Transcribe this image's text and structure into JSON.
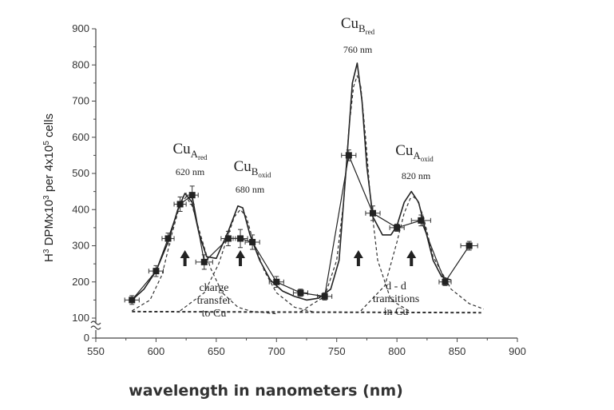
{
  "chart_data": {
    "type": "line",
    "xlabel": "wavelength in nanometers (nm)",
    "ylabel_parts": {
      "base": "H",
      "sup1": "3",
      "mid": " DPMx10",
      "sup2": "3",
      "tail": " per 4x10",
      "sup3": "5",
      "end": " cells"
    },
    "xlim": [
      550,
      900
    ],
    "ylim": [
      0,
      900
    ],
    "xticks": [
      550,
      600,
      650,
      700,
      750,
      800,
      850,
      900
    ],
    "yticks": [
      0,
      100,
      200,
      300,
      400,
      500,
      600,
      700,
      800,
      900
    ],
    "axis_break": true,
    "grid": false,
    "series": [
      {
        "style": "solid-with-square-markers",
        "x": [
          580,
          600,
          610,
          620,
          630,
          640,
          660,
          670,
          680,
          700,
          720,
          740,
          760,
          780,
          800,
          820,
          840,
          860
        ],
        "y": [
          150,
          230,
          320,
          415,
          440,
          255,
          320,
          320,
          310,
          200,
          170,
          160,
          550,
          390,
          350,
          370,
          200,
          300
        ],
        "xerr": [
          6,
          6,
          5,
          5,
          5,
          7,
          6,
          6,
          6,
          6,
          6,
          6,
          6,
          6,
          6,
          8,
          5,
          7
        ],
        "yerr": [
          12,
          15,
          15,
          20,
          25,
          20,
          20,
          25,
          20,
          15,
          10,
          10,
          15,
          20,
          10,
          15,
          10,
          12
        ]
      },
      {
        "style": "solid-fit",
        "x": [
          580,
          590,
          600,
          610,
          618,
          624,
          630,
          636,
          642,
          650,
          660,
          668,
          672,
          678,
          686,
          695,
          705,
          715,
          725,
          735,
          745,
          752,
          758,
          763,
          767,
          771,
          775,
          780,
          788,
          795,
          800,
          806,
          812,
          818,
          824,
          830,
          837,
          845
        ],
        "y": [
          150,
          180,
          230,
          310,
          400,
          445,
          420,
          330,
          270,
          265,
          340,
          410,
          405,
          330,
          260,
          205,
          175,
          160,
          150,
          155,
          180,
          260,
          520,
          750,
          805,
          700,
          520,
          380,
          330,
          330,
          355,
          420,
          450,
          420,
          340,
          260,
          215,
          205
        ]
      },
      {
        "style": "dashed-gaussian",
        "x": [
          580,
          595,
          605,
          613,
          620,
          625,
          630,
          637,
          645,
          655,
          668,
          680,
          690,
          700
        ],
        "y": [
          120,
          150,
          220,
          330,
          415,
          435,
          410,
          330,
          240,
          170,
          130,
          118,
          115,
          112
        ]
      },
      {
        "style": "dashed-gaussian",
        "x": [
          620,
          640,
          652,
          660,
          665,
          670,
          675,
          680,
          690,
          700,
          715,
          730
        ],
        "y": [
          120,
          170,
          250,
          330,
          380,
          400,
          380,
          320,
          230,
          170,
          130,
          118
        ]
      },
      {
        "style": "dashed-gaussian",
        "x": [
          720,
          740,
          750,
          756,
          760,
          764,
          767,
          770,
          774,
          778,
          784,
          795,
          810
        ],
        "y": [
          118,
          160,
          260,
          430,
          620,
          740,
          770,
          740,
          600,
          430,
          260,
          150,
          120
        ]
      },
      {
        "style": "dashed-gaussian",
        "x": [
          770,
          790,
          800,
          806,
          811,
          814,
          817,
          822,
          830,
          845,
          860,
          872
        ],
        "y": [
          120,
          190,
          310,
          390,
          430,
          435,
          425,
          380,
          270,
          180,
          140,
          125
        ]
      },
      {
        "style": "dashed-baseline",
        "x": [
          580,
          870
        ],
        "y": [
          118,
          115
        ]
      }
    ],
    "arrows_x": [
      624,
      670,
      768,
      812
    ],
    "annotations": [
      {
        "id": "cuAred",
        "base": "Cu",
        "sub1": "A",
        "sub2": "red",
        "nm": "620 nm"
      },
      {
        "id": "cuBoxid",
        "base": "Cu",
        "sub1": "B",
        "sub2": "oxid",
        "nm": "680 nm"
      },
      {
        "id": "cuBred",
        "base": "Cu",
        "sub1": "B",
        "sub2": "red",
        "nm": "760 nm"
      },
      {
        "id": "cuAoxid",
        "base": "Cu",
        "sub1": "A",
        "sub2": "oxid",
        "nm": "820 nm"
      }
    ],
    "region_labels": [
      {
        "id": "charge",
        "lines": [
          "charge",
          "transfer",
          "to Cu"
        ]
      },
      {
        "id": "dd",
        "lines": [
          "d - d",
          "transitions",
          "in Cu"
        ]
      }
    ]
  }
}
